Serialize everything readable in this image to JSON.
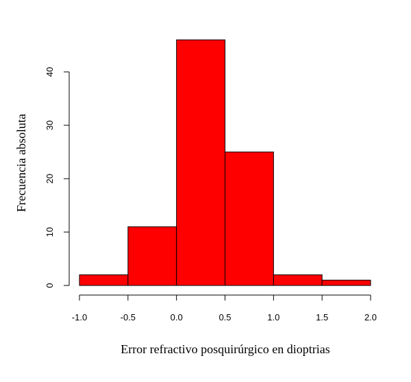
{
  "chart_data": {
    "type": "bar",
    "subtype": "histogram",
    "title": "",
    "xlabel": "Error refractivo posquirúrgico en dioptrias",
    "ylabel": "Frecuencia absoluta",
    "bins": [
      {
        "from": -1.0,
        "to": -0.5,
        "count": 2
      },
      {
        "from": -0.5,
        "to": 0.0,
        "count": 11
      },
      {
        "from": 0.0,
        "to": 0.5,
        "count": 46
      },
      {
        "from": 0.5,
        "to": 1.0,
        "count": 25
      },
      {
        "from": 1.0,
        "to": 1.5,
        "count": 2
      },
      {
        "from": 1.5,
        "to": 2.0,
        "count": 1
      }
    ],
    "xlim": [
      -1.0,
      2.0
    ],
    "ylim": [
      0,
      46
    ],
    "x_ticks": [
      "-1.0",
      "-0.5",
      "0.0",
      "0.5",
      "1.0",
      "1.5",
      "2.0"
    ],
    "y_ticks": [
      "0",
      "10",
      "20",
      "30",
      "40"
    ],
    "bar_color": "#ff0000",
    "edge_color": "#000000",
    "grid": false,
    "legend": "none"
  }
}
